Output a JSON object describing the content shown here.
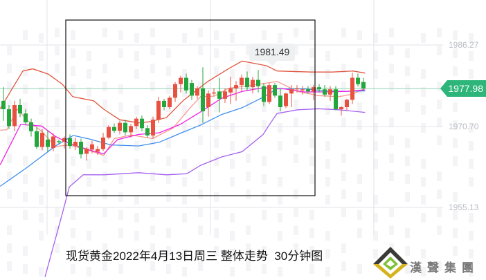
{
  "chart_data": {
    "type": "candlestick",
    "title": "",
    "y_ticks": [
      "1986.27",
      "1970.70",
      "1955.13"
    ],
    "ylim": [
      1948,
      1993
    ],
    "grid": true,
    "colors": {
      "up": "#e8503f",
      "down": "#23a63b",
      "upper_band": "#e0553f",
      "lower_band": "#a660f0",
      "ma_pink": "#f59a8e",
      "ma_magenta": "#f21ee6",
      "ma_blue": "#3e8ef0",
      "last_price": "#2eb57a"
    },
    "last_price": "1977.98",
    "high_marker": "1981.49",
    "candles": [
      [
        1975.6,
        1978.2,
        1971.8,
        1974.0
      ],
      [
        1974.0,
        1974.8,
        1970.2,
        1970.8
      ],
      [
        1970.8,
        1975.6,
        1969.8,
        1974.8
      ],
      [
        1974.8,
        1976.0,
        1972.5,
        1973.2
      ],
      [
        1973.2,
        1974.0,
        1971.0,
        1971.5
      ],
      [
        1971.5,
        1972.2,
        1968.8,
        1969.8
      ],
      [
        1969.8,
        1970.5,
        1966.4,
        1966.8
      ],
      [
        1966.8,
        1970.2,
        1966.2,
        1969.5
      ],
      [
        1968.2,
        1970.0,
        1965.8,
        1966.8
      ],
      [
        1966.6,
        1969.4,
        1966.0,
        1968.8
      ],
      [
        1967.9,
        1968.2,
        1967.4,
        1967.8
      ],
      [
        1967.8,
        1968.8,
        1966.5,
        1968.5
      ],
      [
        1968.5,
        1969.2,
        1966.5,
        1967.0
      ],
      [
        1967.0,
        1968.6,
        1966.2,
        1967.8
      ],
      [
        1967.8,
        1968.4,
        1964.6,
        1965.4
      ],
      [
        1965.5,
        1966.8,
        1964.2,
        1966.5
      ],
      [
        1966.3,
        1968.0,
        1965.6,
        1967.3
      ],
      [
        1965.9,
        1967.0,
        1965.3,
        1966.4
      ],
      [
        1966.4,
        1969.5,
        1966.0,
        1968.6
      ],
      [
        1968.6,
        1971.0,
        1968.3,
        1970.6
      ],
      [
        1970.6,
        1971.3,
        1969.5,
        1969.9
      ],
      [
        1969.9,
        1971.8,
        1969.2,
        1971.4
      ],
      [
        1971.4,
        1972.0,
        1969.0,
        1969.6
      ],
      [
        1969.6,
        1971.2,
        1968.6,
        1970.8
      ],
      [
        1970.8,
        1972.6,
        1970.2,
        1972.2
      ],
      [
        1972.2,
        1972.8,
        1969.8,
        1970.4
      ],
      [
        1970.4,
        1971.0,
        1968.6,
        1969.0
      ],
      [
        1969.0,
        1972.6,
        1968.4,
        1972.0
      ],
      [
        1972.0,
        1976.4,
        1971.4,
        1975.6
      ],
      [
        1975.6,
        1976.0,
        1973.8,
        1974.4
      ],
      [
        1974.4,
        1976.6,
        1974.0,
        1976.2
      ],
      [
        1976.2,
        1979.2,
        1975.4,
        1978.8
      ],
      [
        1978.8,
        1980.4,
        1977.2,
        1980.0
      ],
      [
        1980.0,
        1980.8,
        1977.0,
        1977.6
      ],
      [
        1979.0,
        1979.6,
        1975.8,
        1976.6
      ],
      [
        1976.6,
        1978.4,
        1976.0,
        1978.0
      ],
      [
        1978.0,
        1982.0,
        1971.4,
        1973.6
      ],
      [
        1974.4,
        1977.6,
        1972.6,
        1977.0
      ],
      [
        1977.0,
        1978.0,
        1976.6,
        1977.2
      ],
      [
        1977.4,
        1980.0,
        1973.4,
        1976.0
      ],
      [
        1976.0,
        1978.0,
        1975.2,
        1977.4
      ],
      [
        1977.2,
        1980.2,
        1975.0,
        1978.0
      ],
      [
        1978.0,
        1979.4,
        1975.6,
        1978.6
      ],
      [
        1978.6,
        1980.6,
        1977.4,
        1980.0
      ],
      [
        1980.0,
        1981.2,
        1977.6,
        1978.2
      ],
      [
        1978.2,
        1980.2,
        1977.0,
        1979.6
      ],
      [
        1979.6,
        1981.49,
        1977.2,
        1978.4
      ],
      [
        1978.4,
        1979.0,
        1974.6,
        1975.4
      ],
      [
        1975.4,
        1979.0,
        1975.0,
        1978.6
      ],
      [
        1978.6,
        1979.0,
        1976.2,
        1976.6
      ],
      [
        1976.6,
        1978.0,
        1973.6,
        1974.4
      ],
      [
        1974.6,
        1977.2,
        1974.2,
        1977.0
      ],
      [
        1977.0,
        1978.6,
        1974.4,
        1977.8
      ],
      [
        1977.8,
        1978.6,
        1977.2,
        1978.0
      ],
      [
        1977.6,
        1978.4,
        1976.8,
        1977.8
      ],
      [
        1977.8,
        1978.4,
        1977.0,
        1977.4
      ],
      [
        1977.4,
        1978.6,
        1975.8,
        1978.2
      ],
      [
        1978.2,
        1978.8,
        1977.2,
        1977.8
      ],
      [
        1977.8,
        1978.6,
        1976.4,
        1976.8
      ],
      [
        1976.8,
        1978.4,
        1975.6,
        1977.8
      ],
      [
        1977.8,
        1978.4,
        1973.8,
        1974.0
      ],
      [
        1974.0,
        1974.6,
        1972.8,
        1974.4
      ],
      [
        1974.4,
        1976.0,
        1973.8,
        1975.8
      ],
      [
        1975.8,
        1981.0,
        1975.0,
        1980.0
      ],
      [
        1980.0,
        1980.8,
        1978.4,
        1978.8
      ],
      [
        1979.2,
        1980.0,
        1977.4,
        1977.98
      ]
    ],
    "lines": {
      "upper_band": [
        [
          -0.6,
          1974.1
        ],
        [
          3.5,
          1981.3
        ],
        [
          5.3,
          1981.7
        ],
        [
          8.1,
          1980.7
        ],
        [
          10.6,
          1978.8
        ],
        [
          12.5,
          1976.4
        ],
        [
          16.3,
          1975.6
        ],
        [
          18.1,
          1974.0
        ],
        [
          21,
          1972.0
        ],
        [
          24.4,
          1971.4
        ],
        [
          26.3,
          1971.6
        ],
        [
          29.4,
          1972.4
        ],
        [
          32.5,
          1975.7
        ],
        [
          36.9,
          1979.3
        ],
        [
          40.6,
          1981.7
        ],
        [
          43.1,
          1983.2
        ],
        [
          47.5,
          1982.3
        ],
        [
          49.4,
          1981.3
        ],
        [
          55.6,
          1981.1
        ],
        [
          59.4,
          1981.1
        ],
        [
          63.1,
          1981.3
        ],
        [
          65.3,
          1980.9
        ]
      ],
      "ma_pink": [
        [
          -0.6,
          1970.0
        ],
        [
          0.6,
          1970.1
        ],
        [
          2.5,
          1974.0
        ],
        [
          4.4,
          1971.8
        ],
        [
          6.9,
          1969.8
        ],
        [
          9.4,
          1966.9
        ],
        [
          11.9,
          1967.2
        ],
        [
          15.6,
          1966.1
        ],
        [
          18.1,
          1965.2
        ],
        [
          20,
          1968.4
        ],
        [
          23.1,
          1969.1
        ],
        [
          26.9,
          1968.4
        ],
        [
          30.6,
          1970.4
        ],
        [
          33.8,
          1974.4
        ],
        [
          35.6,
          1976.4
        ],
        [
          38.1,
          1976.5
        ],
        [
          40.6,
          1978.0
        ],
        [
          44.4,
          1978.5
        ],
        [
          49.4,
          1979.3
        ],
        [
          53.1,
          1977.4
        ],
        [
          56.9,
          1976.6
        ],
        [
          60.6,
          1976.4
        ],
        [
          63.1,
          1976.9
        ],
        [
          65.3,
          1978.0
        ]
      ],
      "ma_magenta": [
        [
          -0.6,
          1963.4
        ],
        [
          3.1,
          1971.1
        ],
        [
          6.9,
          1970.8
        ],
        [
          9.4,
          1968.8
        ],
        [
          11.9,
          1967.5
        ],
        [
          15.6,
          1966.2
        ],
        [
          18.1,
          1965.5
        ],
        [
          20.6,
          1968.2
        ],
        [
          24.4,
          1969.2
        ],
        [
          28.1,
          1969.5
        ],
        [
          31.9,
          1971.1
        ],
        [
          35.6,
          1973.5
        ],
        [
          39.4,
          1976.1
        ],
        [
          43.1,
          1977.4
        ],
        [
          46.9,
          1978.1
        ],
        [
          50.6,
          1977.9
        ],
        [
          54.4,
          1977.3
        ],
        [
          58.1,
          1977.3
        ],
        [
          61.9,
          1977.4
        ],
        [
          65.3,
          1977.7
        ]
      ],
      "ma_blue": [
        [
          -0.6,
          1959.3
        ],
        [
          4.4,
          1963.0
        ],
        [
          9.4,
          1967.0
        ],
        [
          12.6,
          1969.0
        ],
        [
          15.6,
          1968.3
        ],
        [
          19.4,
          1967.2
        ],
        [
          24.4,
          1967.0
        ],
        [
          28.1,
          1967.7
        ],
        [
          31.9,
          1969.4
        ],
        [
          35.6,
          1971.0
        ],
        [
          39.4,
          1973.0
        ],
        [
          43.1,
          1974.3
        ],
        [
          46.9,
          1976.3
        ],
        [
          49.4,
          1977.9
        ],
        [
          54.4,
          1977.9
        ],
        [
          58.1,
          1977.5
        ],
        [
          61.9,
          1977.4
        ],
        [
          65.3,
          1977.5
        ]
      ],
      "lower_band": [
        [
          7.5,
          1942.0
        ],
        [
          10.6,
          1954.0
        ],
        [
          11.9,
          1959.2
        ],
        [
          14.4,
          1961.5
        ],
        [
          18.1,
          1961.5
        ],
        [
          24.4,
          1961.9
        ],
        [
          29.4,
          1961.5
        ],
        [
          33.1,
          1961.7
        ],
        [
          35.6,
          1963.3
        ],
        [
          39.4,
          1964.9
        ],
        [
          43.1,
          1965.9
        ],
        [
          46.9,
          1969.2
        ],
        [
          48.1,
          1971.2
        ],
        [
          49.4,
          1973.2
        ],
        [
          53.1,
          1973.9
        ],
        [
          56.9,
          1974.1
        ],
        [
          60.6,
          1973.9
        ],
        [
          65.3,
          1973.4
        ]
      ]
    }
  },
  "caption": "现货黄金2022年4月13日周三 整体走势  30分钟图",
  "brand": {
    "name": "漢聲集團",
    "logo_text": "SN"
  }
}
